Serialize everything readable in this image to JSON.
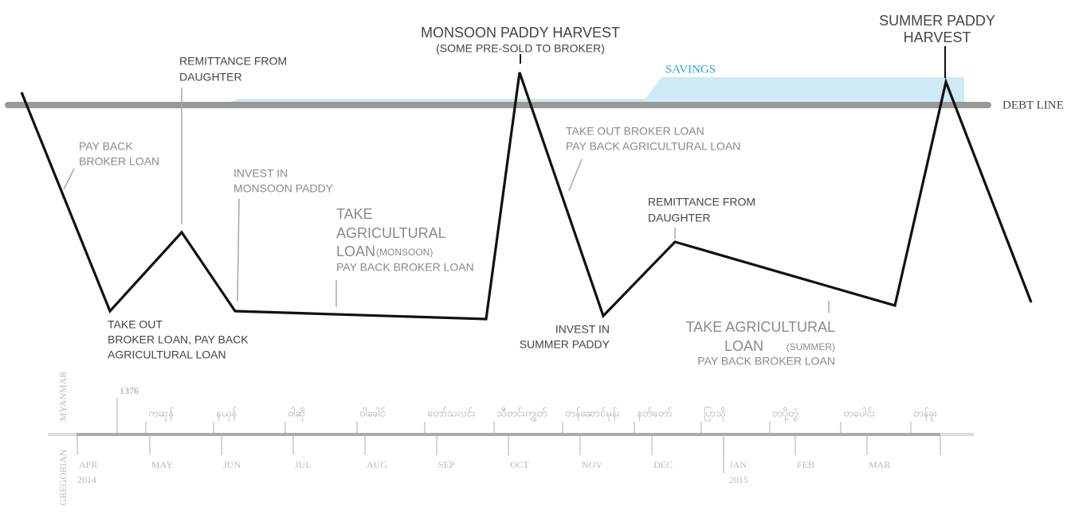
{
  "debt_line_label": "DEBT LINE",
  "savings_label": "SAVINGS",
  "annotations": {
    "pay_back_broker": [
      "PAY BACK",
      "BROKER LOAN"
    ],
    "remittance_1": [
      "REMITTANCE FROM",
      "DAUGHTER"
    ],
    "invest_monsoon": [
      "INVEST IN",
      "MONSOON PADDY"
    ],
    "agri_monsoon": [
      "TAKE",
      "AGRICULTURAL",
      "LOAN",
      "(MONSOON)",
      "PAY BACK BROKER LOAN"
    ],
    "monsoon_harvest": [
      "MONSOON PADDY HARVEST",
      "(SOME PRE-SOLD TO BROKER)"
    ],
    "broker_out": [
      "TAKE OUT BROKER LOAN",
      "PAY BACK AGRICULTURAL LOAN"
    ],
    "remittance_2": [
      "REMITTANCE FROM",
      "DAUGHTER"
    ],
    "summer_harvest": [
      "SUMMER PADDY",
      "HARVEST"
    ],
    "take_out": [
      "TAKE OUT",
      "BROKER LOAN, PAY BACK",
      "AGRICULTURAL LOAN"
    ],
    "invest_summer": [
      "INVEST IN",
      "SUMMER PADDY"
    ],
    "agri_summer": [
      "TAKE AGRICULTURAL",
      "LOAN",
      "(SUMMER)",
      "PAY BACK BROKER LOAN"
    ]
  },
  "calendar": {
    "myanmar_label": "MYANMAR",
    "gregorian_label": "GREGORIAN",
    "myanmar_year": "1376",
    "myanmar_months": [
      "ကဆုန်",
      "နယုန်",
      "ဝါဆို",
      "ဝါခေါင်",
      "တော်သလင်း",
      "သီတင်းကျွတ်",
      "တန်ဆောင်မုန်း",
      "နတ်တော်",
      "ပြာသို",
      "တပို့တွဲ",
      "တပေါင်း",
      "တန်ခူး"
    ],
    "gregorian_months": [
      "APR",
      "MAY",
      "JUN",
      "JUL",
      "AUG",
      "SEP",
      "OCT",
      "NOV",
      "DEC",
      "JAN",
      "FEB",
      "MAR"
    ],
    "years": [
      "2014",
      "2015"
    ]
  }
}
